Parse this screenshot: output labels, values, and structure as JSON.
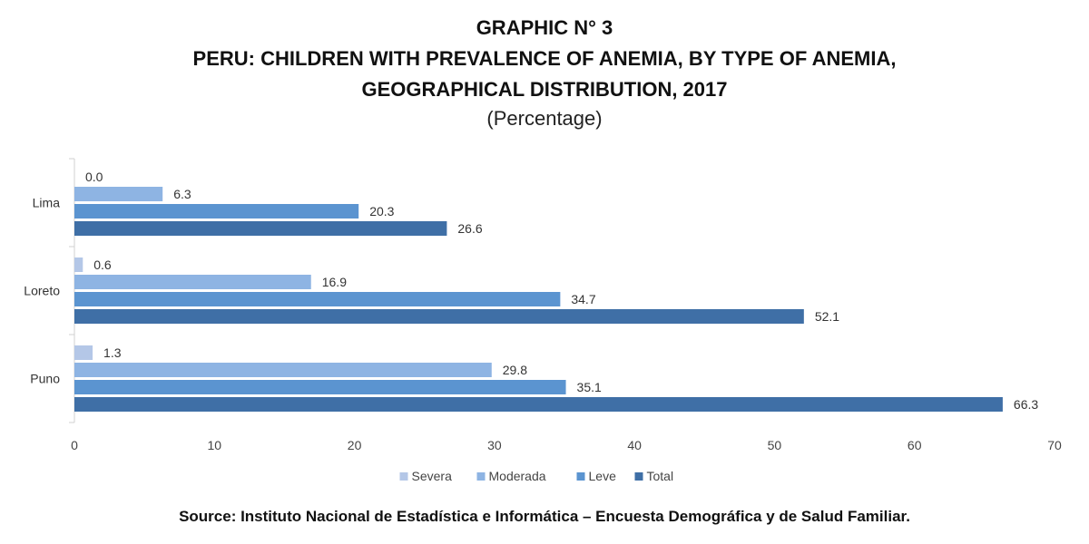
{
  "chart_data": {
    "type": "bar",
    "orientation": "horizontal",
    "title_lines": [
      "GRAPHIC N° 3",
      "PERU: CHILDREN WITH PREVALENCE OF ANEMIA, BY TYPE OF ANEMIA,",
      "GEOGRAPHICAL DISTRIBUTION, 2017"
    ],
    "subtitle": "(Percentage)",
    "categories": [
      "Lima",
      "Loreto",
      "Puno"
    ],
    "series": [
      {
        "name": "Severa",
        "values": [
          0.0,
          0.6,
          1.3
        ],
        "color": "#b4c7e7"
      },
      {
        "name": "Moderada",
        "values": [
          6.3,
          16.9,
          29.8
        ],
        "color": "#8eb4e3"
      },
      {
        "name": "Leve",
        "values": [
          20.3,
          34.7,
          35.1
        ],
        "color": "#5b94d0"
      },
      {
        "name": "Total",
        "values": [
          26.6,
          52.1,
          66.3
        ],
        "color": "#3f6fa6"
      }
    ],
    "value_labels": [
      [
        "0.0",
        "0.6",
        "1.3"
      ],
      [
        "6.3",
        "16.9",
        "29.8"
      ],
      [
        "20.3",
        "34.7",
        "35.1"
      ],
      [
        "26.6",
        "52.1",
        "66.3"
      ]
    ],
    "xlim": [
      0,
      70
    ],
    "xticks": [
      "0",
      "10",
      "20",
      "30",
      "40",
      "50",
      "60",
      "70"
    ],
    "grid": false,
    "legend_position": "bottom"
  },
  "source": "Source: Instituto Nacional de Estadística e Informática – Encuesta Demográfica y de Salud Familiar."
}
